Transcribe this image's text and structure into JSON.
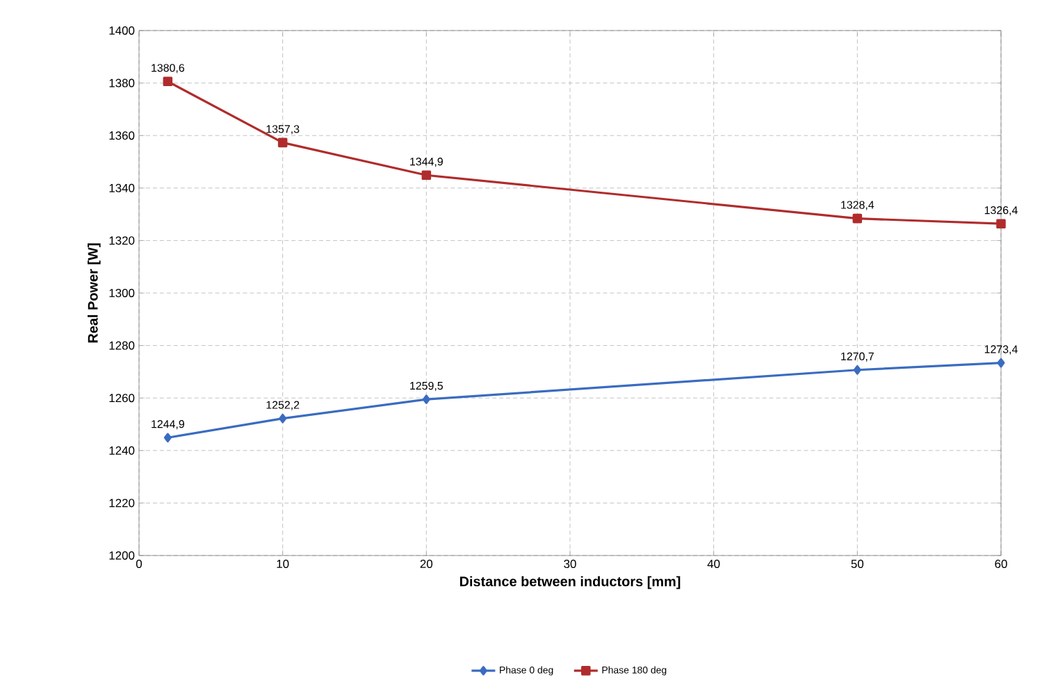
{
  "chart_data": {
    "type": "line",
    "xlabel": "Distance between inductors [mm]",
    "ylabel": "Real Power [W]",
    "x": [
      2,
      10,
      20,
      50,
      60
    ],
    "series": [
      {
        "name": "Phase 0 deg",
        "color": "#3a6cc0",
        "marker": "diamond",
        "values": [
          1244.9,
          1252.2,
          1259.5,
          1270.7,
          1273.4
        ],
        "value_labels": [
          "1244,9",
          "1252,2",
          "1259,5",
          "1270,7",
          "1273,4"
        ]
      },
      {
        "name": "Phase 180 deg",
        "color": "#b02c2c",
        "marker": "square",
        "values": [
          1380.6,
          1357.3,
          1344.9,
          1328.4,
          1326.4
        ],
        "value_labels": [
          "1380,6",
          "1357,3",
          "1344,9",
          "1328,4",
          "1326,4"
        ]
      }
    ],
    "xlim": [
      0,
      60
    ],
    "xticks": [
      0,
      10,
      20,
      30,
      40,
      50,
      60
    ],
    "ylim": [
      1200,
      1400
    ],
    "yticks": [
      1200,
      1220,
      1240,
      1260,
      1280,
      1300,
      1320,
      1340,
      1360,
      1380,
      1400
    ],
    "grid": true,
    "legend": "bottom",
    "line_style": "solid"
  }
}
